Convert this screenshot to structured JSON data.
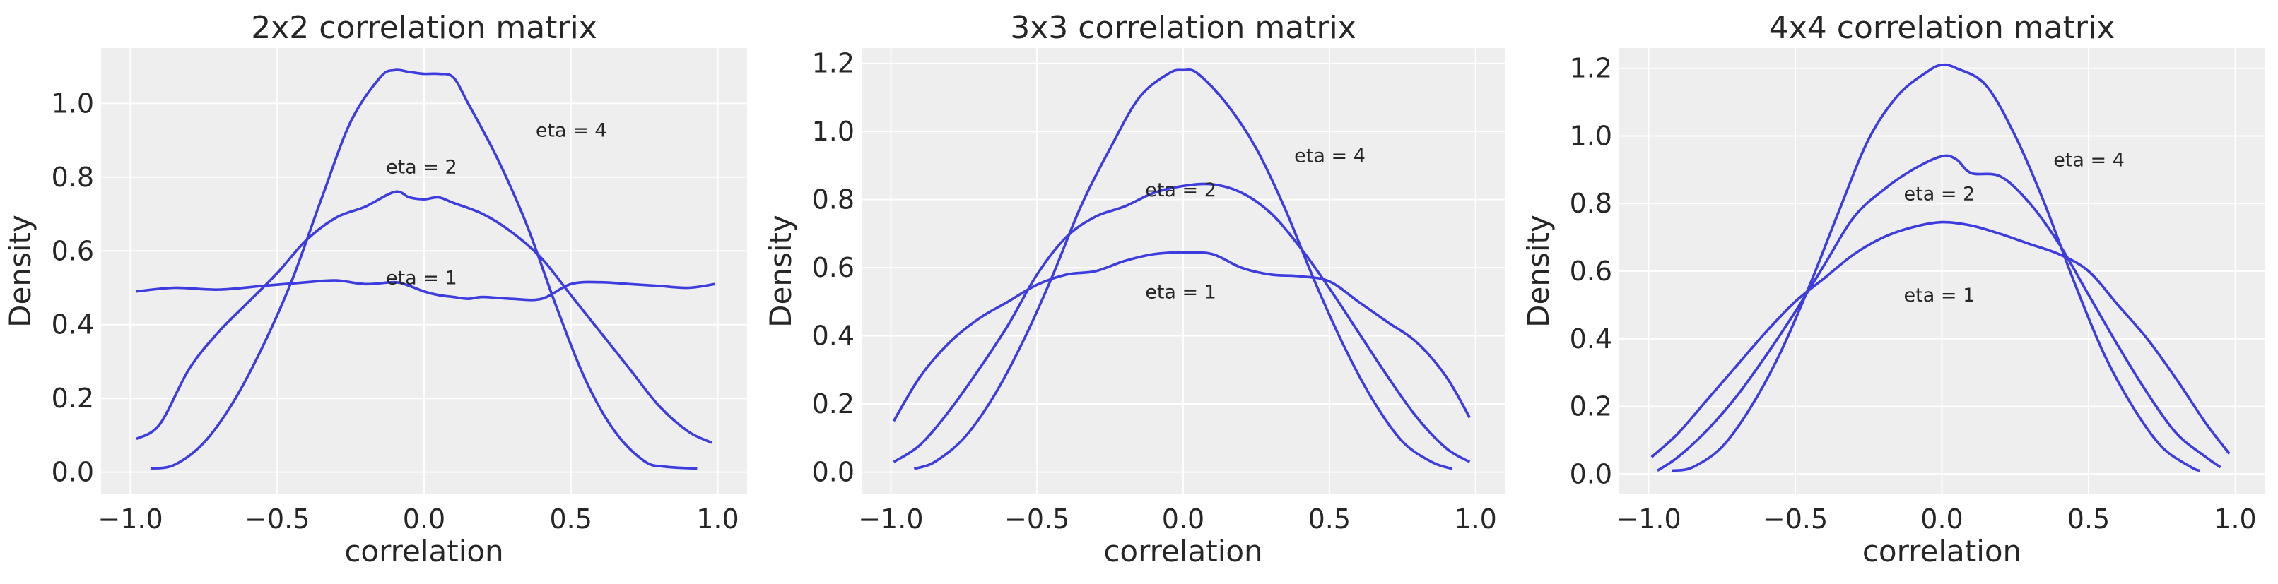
{
  "style": {
    "line_color": "#3c3cdf",
    "panel_bg": "#eeeeee",
    "grid_color": "#ffffff",
    "text_color": "#262626"
  },
  "chart_data": [
    {
      "type": "line",
      "title": "2x2 correlation matrix",
      "xlabel": "correlation",
      "ylabel": "Density",
      "xlim": [
        -1.1,
        1.1
      ],
      "ylim": [
        -0.06,
        1.15
      ],
      "xticks": [
        -1.0,
        -0.5,
        0.0,
        0.5,
        1.0
      ],
      "xtick_labels": [
        "−1.0",
        "−0.5",
        "0.0",
        "0.5",
        "1.0"
      ],
      "yticks": [
        0.0,
        0.2,
        0.4,
        0.6,
        0.8,
        1.0
      ],
      "ytick_labels": [
        "0.0",
        "0.2",
        "0.4",
        "0.6",
        "0.8",
        "1.0"
      ],
      "grid": true,
      "annotations": [
        {
          "text": "eta = 4",
          "x": 0.38,
          "y": 0.91
        },
        {
          "text": "eta = 2",
          "x": -0.13,
          "y": 0.81
        },
        {
          "text": "eta = 1",
          "x": -0.13,
          "y": 0.51
        }
      ],
      "series": [
        {
          "x": [
            -0.98,
            -0.85,
            -0.7,
            -0.55,
            -0.4,
            -0.3,
            -0.2,
            -0.1,
            -0.05,
            0.0,
            0.05,
            0.1,
            0.15,
            0.2,
            0.3,
            0.4,
            0.5,
            0.6,
            0.7,
            0.8,
            0.9,
            0.99
          ],
          "y": [
            0.49,
            0.5,
            0.495,
            0.505,
            0.515,
            0.52,
            0.51,
            0.515,
            0.505,
            0.49,
            0.48,
            0.475,
            0.47,
            0.475,
            0.47,
            0.47,
            0.51,
            0.515,
            0.51,
            0.505,
            0.5,
            0.51
          ]
        },
        {
          "x": [
            -0.98,
            -0.9,
            -0.8,
            -0.7,
            -0.6,
            -0.5,
            -0.4,
            -0.3,
            -0.2,
            -0.1,
            -0.05,
            0.0,
            0.05,
            0.1,
            0.2,
            0.3,
            0.4,
            0.5,
            0.6,
            0.7,
            0.8,
            0.9,
            0.98
          ],
          "y": [
            0.09,
            0.13,
            0.28,
            0.38,
            0.46,
            0.54,
            0.63,
            0.69,
            0.72,
            0.76,
            0.745,
            0.74,
            0.745,
            0.73,
            0.7,
            0.65,
            0.58,
            0.48,
            0.38,
            0.28,
            0.18,
            0.11,
            0.08
          ]
        },
        {
          "x": [
            -0.93,
            -0.85,
            -0.75,
            -0.65,
            -0.55,
            -0.45,
            -0.35,
            -0.25,
            -0.15,
            -0.1,
            -0.05,
            0.0,
            0.05,
            0.1,
            0.15,
            0.25,
            0.35,
            0.45,
            0.55,
            0.65,
            0.75,
            0.82,
            0.93
          ],
          "y": [
            0.01,
            0.02,
            0.08,
            0.19,
            0.34,
            0.52,
            0.74,
            0.95,
            1.07,
            1.09,
            1.085,
            1.08,
            1.08,
            1.07,
            1.0,
            0.85,
            0.67,
            0.45,
            0.25,
            0.11,
            0.03,
            0.015,
            0.01
          ]
        }
      ]
    },
    {
      "type": "line",
      "title": "3x3 correlation matrix",
      "xlabel": "correlation",
      "ylabel": "Density",
      "xlim": [
        -1.1,
        1.1
      ],
      "ylim": [
        -0.065,
        1.245
      ],
      "xticks": [
        -1.0,
        -0.5,
        0.0,
        0.5,
        1.0
      ],
      "xtick_labels": [
        "−1.0",
        "−0.5",
        "0.0",
        "0.5",
        "1.0"
      ],
      "yticks": [
        0.0,
        0.2,
        0.4,
        0.6,
        0.8,
        1.0,
        1.2
      ],
      "ytick_labels": [
        "0.0",
        "0.2",
        "0.4",
        "0.6",
        "0.8",
        "1.0",
        "1.2"
      ],
      "grid": true,
      "annotations": [
        {
          "text": "eta = 4",
          "x": 0.38,
          "y": 0.91
        },
        {
          "text": "eta = 2",
          "x": -0.13,
          "y": 0.81
        },
        {
          "text": "eta = 1",
          "x": -0.13,
          "y": 0.51
        }
      ],
      "series": [
        {
          "x": [
            -0.99,
            -0.9,
            -0.8,
            -0.7,
            -0.6,
            -0.5,
            -0.4,
            -0.3,
            -0.2,
            -0.1,
            0.0,
            0.1,
            0.2,
            0.3,
            0.4,
            0.5,
            0.6,
            0.7,
            0.8,
            0.9,
            0.98
          ],
          "y": [
            0.15,
            0.28,
            0.38,
            0.45,
            0.5,
            0.55,
            0.58,
            0.59,
            0.62,
            0.64,
            0.645,
            0.64,
            0.6,
            0.58,
            0.575,
            0.56,
            0.5,
            0.44,
            0.38,
            0.28,
            0.16
          ]
        },
        {
          "x": [
            -0.99,
            -0.9,
            -0.8,
            -0.7,
            -0.6,
            -0.5,
            -0.4,
            -0.3,
            -0.2,
            -0.1,
            0.0,
            0.1,
            0.2,
            0.3,
            0.4,
            0.5,
            0.6,
            0.7,
            0.8,
            0.9,
            0.98
          ],
          "y": [
            0.03,
            0.08,
            0.18,
            0.3,
            0.43,
            0.58,
            0.69,
            0.75,
            0.78,
            0.82,
            0.84,
            0.845,
            0.82,
            0.76,
            0.66,
            0.54,
            0.41,
            0.28,
            0.16,
            0.07,
            0.03
          ]
        },
        {
          "x": [
            -0.92,
            -0.85,
            -0.75,
            -0.65,
            -0.55,
            -0.45,
            -0.35,
            -0.25,
            -0.15,
            -0.05,
            0.0,
            0.05,
            0.15,
            0.25,
            0.35,
            0.45,
            0.55,
            0.65,
            0.75,
            0.85,
            0.92
          ],
          "y": [
            0.01,
            0.03,
            0.1,
            0.22,
            0.38,
            0.57,
            0.78,
            0.95,
            1.1,
            1.17,
            1.18,
            1.17,
            1.08,
            0.95,
            0.77,
            0.56,
            0.37,
            0.21,
            0.09,
            0.03,
            0.01
          ]
        }
      ]
    },
    {
      "type": "line",
      "title": "4x4 correlation matrix",
      "xlabel": "correlation",
      "ylabel": "Density",
      "xlim": [
        -1.1,
        1.1
      ],
      "ylim": [
        -0.06,
        1.26
      ],
      "xticks": [
        -1.0,
        -0.5,
        0.0,
        0.5,
        1.0
      ],
      "xtick_labels": [
        "−1.0",
        "−0.5",
        "0.0",
        "0.5",
        "1.0"
      ],
      "yticks": [
        0.0,
        0.2,
        0.4,
        0.6,
        0.8,
        1.0,
        1.2
      ],
      "ytick_labels": [
        "0.0",
        "0.2",
        "0.4",
        "0.6",
        "0.8",
        "1.0",
        "1.2"
      ],
      "grid": true,
      "annotations": [
        {
          "text": "eta = 4",
          "x": 0.38,
          "y": 0.91
        },
        {
          "text": "eta = 2",
          "x": -0.13,
          "y": 0.81
        },
        {
          "text": "eta = 1",
          "x": -0.13,
          "y": 0.51
        }
      ],
      "series": [
        {
          "x": [
            -0.99,
            -0.9,
            -0.8,
            -0.7,
            -0.6,
            -0.5,
            -0.4,
            -0.3,
            -0.2,
            -0.1,
            0.0,
            0.1,
            0.2,
            0.3,
            0.4,
            0.5,
            0.6,
            0.7,
            0.8,
            0.9,
            0.98
          ],
          "y": [
            0.05,
            0.12,
            0.22,
            0.32,
            0.42,
            0.51,
            0.58,
            0.65,
            0.7,
            0.73,
            0.745,
            0.735,
            0.71,
            0.68,
            0.65,
            0.6,
            0.5,
            0.4,
            0.28,
            0.15,
            0.06
          ]
        },
        {
          "x": [
            -0.97,
            -0.9,
            -0.8,
            -0.7,
            -0.6,
            -0.5,
            -0.4,
            -0.3,
            -0.2,
            -0.1,
            0.0,
            0.05,
            0.1,
            0.2,
            0.3,
            0.4,
            0.5,
            0.6,
            0.7,
            0.8,
            0.9,
            0.95
          ],
          "y": [
            0.01,
            0.05,
            0.13,
            0.23,
            0.35,
            0.48,
            0.62,
            0.76,
            0.84,
            0.9,
            0.94,
            0.93,
            0.89,
            0.88,
            0.8,
            0.68,
            0.53,
            0.38,
            0.24,
            0.12,
            0.05,
            0.02
          ]
        },
        {
          "x": [
            -0.92,
            -0.85,
            -0.75,
            -0.65,
            -0.55,
            -0.45,
            -0.35,
            -0.25,
            -0.15,
            -0.05,
            0.0,
            0.05,
            0.15,
            0.25,
            0.35,
            0.45,
            0.55,
            0.65,
            0.75,
            0.85,
            0.88
          ],
          "y": [
            0.01,
            0.02,
            0.08,
            0.2,
            0.36,
            0.56,
            0.78,
            0.99,
            1.12,
            1.19,
            1.21,
            1.2,
            1.15,
            1.0,
            0.8,
            0.57,
            0.36,
            0.2,
            0.08,
            0.02,
            0.01
          ]
        }
      ]
    }
  ]
}
